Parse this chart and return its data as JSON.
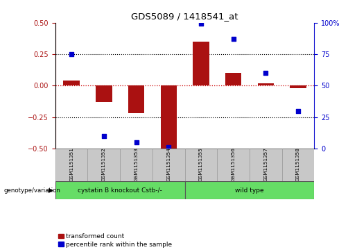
{
  "title": "GDS5089 / 1418541_at",
  "categories": [
    "GSM1151351",
    "GSM1151352",
    "GSM1151353",
    "GSM1151354",
    "GSM1151355",
    "GSM1151356",
    "GSM1151357",
    "GSM1151358"
  ],
  "bar_values": [
    0.04,
    -0.13,
    -0.22,
    -0.5,
    0.35,
    0.1,
    0.02,
    -0.02
  ],
  "dot_values": [
    75,
    10,
    5,
    1,
    99,
    87,
    60,
    30
  ],
  "bar_color": "#aa1111",
  "dot_color": "#0000cc",
  "ylim_left": [
    -0.5,
    0.5
  ],
  "ylim_right": [
    0,
    100
  ],
  "yticks_left": [
    -0.5,
    -0.25,
    0.0,
    0.25,
    0.5
  ],
  "yticks_right": [
    0,
    25,
    50,
    75,
    100
  ],
  "hline_color": "#cc0000",
  "dotted_line_color": "#000000",
  "dotted_lines": [
    -0.25,
    0.0,
    0.25
  ],
  "group1_label": "cystatin B knockout Cstb-/-",
  "group1_samples": 4,
  "group2_label": "wild type",
  "group2_samples": 4,
  "group_bar_color": "#66dd66",
  "genotype_label": "genotype/variation",
  "legend_bar_label": "transformed count",
  "legend_dot_label": "percentile rank within the sample",
  "axes_bg": "#ffffff",
  "tick_area_bg": "#c8c8c8",
  "bar_width": 0.5
}
